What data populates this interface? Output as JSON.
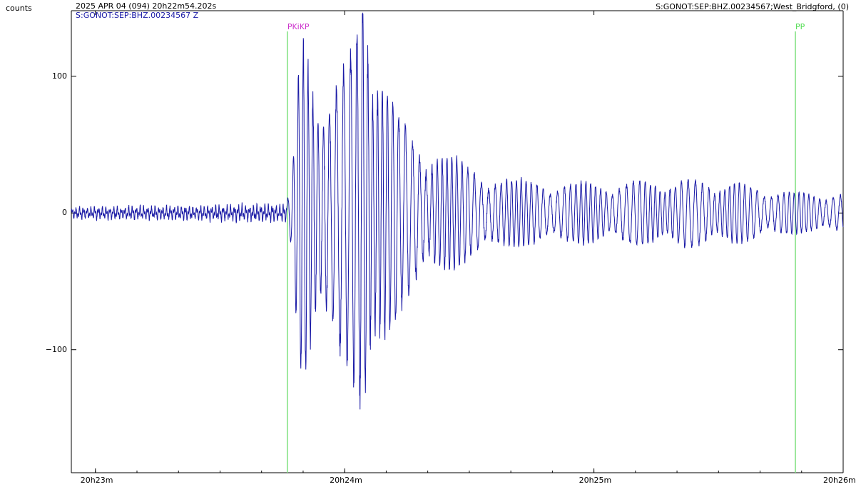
{
  "header": {
    "units_label": "counts",
    "datetime": "2025 APR 04 (094)  20h22m54.202s",
    "station_right": "S:GONOT:SEP:BHZ.00234567;West_Bridgford, (0)",
    "channel_label": "S:GONOT:SEP:BHZ.00234567 Z"
  },
  "chart_data": {
    "type": "line",
    "title": "",
    "xlabel": "",
    "ylabel": "counts",
    "x_start_seconds_of_hour": 1374.2,
    "x_end_seconds_of_hour": 1560.0,
    "ylim": [
      -190,
      148
    ],
    "y_ticks": [
      {
        "value": 100,
        "label": "100"
      },
      {
        "value": 0,
        "label": "0"
      },
      {
        "value": -100,
        "label": "−100"
      }
    ],
    "x_ticks": [
      {
        "value_seconds": 1380,
        "label": "20h23m"
      },
      {
        "value_seconds": 1440,
        "label": "20h24m"
      },
      {
        "value_seconds": 1500,
        "label": "20h25m"
      },
      {
        "value_seconds": 1560,
        "label": "20h26m"
      }
    ],
    "phases": [
      {
        "name": "PKiKP",
        "time_seconds": 1426.2,
        "color": "#cc33cc",
        "line_color": "#7ee07e"
      },
      {
        "name": "PP",
        "time_seconds": 1548.5,
        "color": "#55dd55",
        "line_color": "#7ee07e"
      }
    ],
    "waveform_envelope": [
      {
        "t": 1374.2,
        "amp": 4
      },
      {
        "t": 1426.0,
        "amp": 6
      },
      {
        "t": 1427.5,
        "amp": 30
      },
      {
        "t": 1428.5,
        "amp": 90
      },
      {
        "t": 1430.0,
        "amp": 130
      },
      {
        "t": 1433.0,
        "amp": 100
      },
      {
        "t": 1437.0,
        "amp": 95
      },
      {
        "t": 1441.0,
        "amp": 110
      },
      {
        "t": 1443.0,
        "amp": 145
      },
      {
        "t": 1444.5,
        "amp": 185
      },
      {
        "t": 1448.0,
        "amp": 120
      },
      {
        "t": 1453.0,
        "amp": 70
      },
      {
        "t": 1460.0,
        "amp": 50
      },
      {
        "t": 1470.0,
        "amp": 35
      },
      {
        "t": 1480.0,
        "amp": 25
      },
      {
        "t": 1500.0,
        "amp": 22
      },
      {
        "t": 1520.0,
        "amp": 25
      },
      {
        "t": 1535.0,
        "amp": 22
      },
      {
        "t": 1548.0,
        "amp": 15
      },
      {
        "t": 1560.0,
        "amp": 15
      }
    ],
    "grid": false,
    "legend": "none",
    "series_color": "#1a1aa6"
  }
}
